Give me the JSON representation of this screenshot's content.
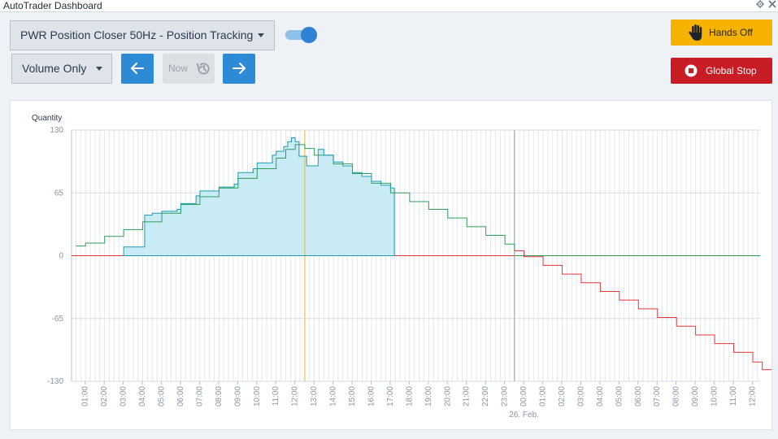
{
  "window": {
    "title": "AutoTrader Dashboard",
    "settings_icon": "gear-icon",
    "close_icon": "close-icon"
  },
  "toolbar": {
    "strategy_select": {
      "value": "PWR Position Closer 50Hz - Position Tracking"
    },
    "view_select": {
      "value": "Volume Only"
    },
    "toggle_on": true,
    "now_label": "Now",
    "hands_off_label": "Hands Off",
    "global_stop_label": "Global Stop"
  },
  "colors": {
    "accent": "#2c8ad6",
    "hands_off": "#f5b300",
    "global_stop": "#c91d25",
    "target_line": "#2e9e57",
    "negative_line": "#e0383c",
    "position_line": "#1b9db0",
    "position_fill": "#c8ebf5",
    "now_marker": "#e8b83a"
  },
  "chart_data": {
    "type": "area",
    "ylabel": "Quantity",
    "y_ticks": [
      130,
      65,
      0,
      -65,
      -130
    ],
    "ylim": [
      -130,
      130
    ],
    "x_tick_labels": [
      "01:00",
      "02:00",
      "03:00",
      "04:00",
      "05:00",
      "06:00",
      "07:00",
      "08:00",
      "09:00",
      "10:00",
      "11:00",
      "12:00",
      "13:00",
      "14:00",
      "15:00",
      "16:00",
      "17:00",
      "18:00",
      "19:00",
      "20:00",
      "21:00",
      "22:00",
      "23:00",
      "00:00",
      "01:00",
      "02:00",
      "03:00",
      "04:00",
      "05:00",
      "06:00",
      "07:00",
      "08:00",
      "09:00",
      "10:00",
      "11:00",
      "12:00"
    ],
    "date_label": "26. Feb.",
    "date_label_at_tick": 23,
    "now_marker_hour": 12.5,
    "midnight_marker_hour": 23.5,
    "grid": true,
    "series": [
      {
        "name": "",
        "kind": "target",
        "points": [
          [
            0.5,
            10
          ],
          [
            1,
            13
          ],
          [
            2,
            20
          ],
          [
            3,
            27
          ],
          [
            4,
            35
          ],
          [
            5,
            44
          ],
          [
            6,
            53
          ],
          [
            7,
            61
          ],
          [
            8,
            70
          ],
          [
            9,
            80
          ],
          [
            10,
            90
          ],
          [
            11,
            101
          ],
          [
            11.5,
            110
          ],
          [
            12,
            115
          ],
          [
            12.5,
            111
          ],
          [
            13,
            104
          ],
          [
            14,
            95
          ],
          [
            15,
            85
          ],
          [
            16,
            75
          ],
          [
            17,
            65
          ],
          [
            18,
            56
          ],
          [
            19,
            48
          ],
          [
            20,
            39
          ],
          [
            21,
            30
          ],
          [
            22,
            21
          ],
          [
            23,
            12
          ],
          [
            23.5,
            5
          ],
          [
            24,
            -1
          ],
          [
            25,
            -10
          ],
          [
            26,
            -19
          ],
          [
            27,
            -28
          ],
          [
            28,
            -37
          ],
          [
            29,
            -46
          ],
          [
            30,
            -55
          ],
          [
            31,
            -64
          ],
          [
            32,
            -73
          ],
          [
            33,
            -82
          ],
          [
            34,
            -91
          ],
          [
            35,
            -100
          ],
          [
            36,
            -110
          ],
          [
            36.5,
            -118
          ],
          [
            37,
            -113
          ],
          [
            37.3,
            -113
          ]
        ]
      },
      {
        "name": "",
        "kind": "position",
        "points": [
          [
            3.0,
            9
          ],
          [
            4.0,
            9
          ],
          [
            4.1,
            42
          ],
          [
            4.5,
            44
          ],
          [
            5,
            46
          ],
          [
            5.8,
            48
          ],
          [
            6,
            54
          ],
          [
            6.8,
            62
          ],
          [
            7,
            67
          ],
          [
            8,
            71
          ],
          [
            8.8,
            74
          ],
          [
            9,
            86
          ],
          [
            9.8,
            90
          ],
          [
            10,
            96
          ],
          [
            10.8,
            104
          ],
          [
            11,
            108
          ],
          [
            11.4,
            113
          ],
          [
            11.6,
            118
          ],
          [
            11.8,
            122
          ],
          [
            12,
            118
          ],
          [
            12.2,
            103
          ],
          [
            12.6,
            93
          ],
          [
            12.9,
            93
          ],
          [
            13.2,
            110
          ],
          [
            13.5,
            104
          ],
          [
            14,
            97
          ],
          [
            14.5,
            93
          ],
          [
            15,
            86
          ],
          [
            15.5,
            82
          ],
          [
            16,
            77
          ],
          [
            16.5,
            73
          ],
          [
            17,
            70
          ],
          [
            17.2,
            70
          ]
        ]
      }
    ]
  }
}
